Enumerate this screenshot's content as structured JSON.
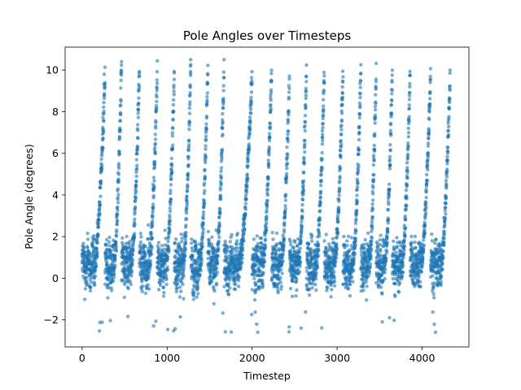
{
  "chart_data": {
    "type": "scatter",
    "title": "Pole Angles over Timesteps",
    "xlabel": "Timestep",
    "ylabel": "Pole Angle (degrees)",
    "xlim": [
      -200,
      4550
    ],
    "ylim": [
      -3.3,
      11.1
    ],
    "xticks": [
      0,
      1000,
      2000,
      3000,
      4000
    ],
    "yticks": [
      -2,
      0,
      2,
      4,
      6,
      8,
      10
    ],
    "grid": false,
    "legend": "none",
    "marker_color": "#1f77b4",
    "marker_alpha": 0.6,
    "point_count_approx": 4300,
    "x_range": [
      0,
      4330
    ],
    "y_range": [
      -2.6,
      10.5
    ],
    "episodes": [
      {
        "start": 0,
        "end": 270,
        "peak_y": 10.0
      },
      {
        "start": 270,
        "end": 465,
        "peak_y": 10.5
      },
      {
        "start": 465,
        "end": 675,
        "peak_y": 10.2
      },
      {
        "start": 675,
        "end": 885,
        "peak_y": 10.2
      },
      {
        "start": 885,
        "end": 1085,
        "peak_y": 10.0
      },
      {
        "start": 1085,
        "end": 1280,
        "peak_y": 10.5
      },
      {
        "start": 1280,
        "end": 1480,
        "peak_y": 10.2
      },
      {
        "start": 1480,
        "end": 1670,
        "peak_y": 10.3
      },
      {
        "start": 1670,
        "end": 2000,
        "peak_y": 9.9
      },
      {
        "start": 2000,
        "end": 2230,
        "peak_y": 10.1
      },
      {
        "start": 2230,
        "end": 2440,
        "peak_y": 9.9
      },
      {
        "start": 2440,
        "end": 2640,
        "peak_y": 9.9
      },
      {
        "start": 2640,
        "end": 2850,
        "peak_y": 10.1
      },
      {
        "start": 2850,
        "end": 3070,
        "peak_y": 10.1
      },
      {
        "start": 3070,
        "end": 3280,
        "peak_y": 10.1
      },
      {
        "start": 3280,
        "end": 3460,
        "peak_y": 10.2
      },
      {
        "start": 3460,
        "end": 3650,
        "peak_y": 10.0
      },
      {
        "start": 3650,
        "end": 3860,
        "peak_y": 10.0
      },
      {
        "start": 3860,
        "end": 4100,
        "peak_y": 10.1
      },
      {
        "start": 4100,
        "end": 4330,
        "peak_y": 10.0
      }
    ]
  }
}
